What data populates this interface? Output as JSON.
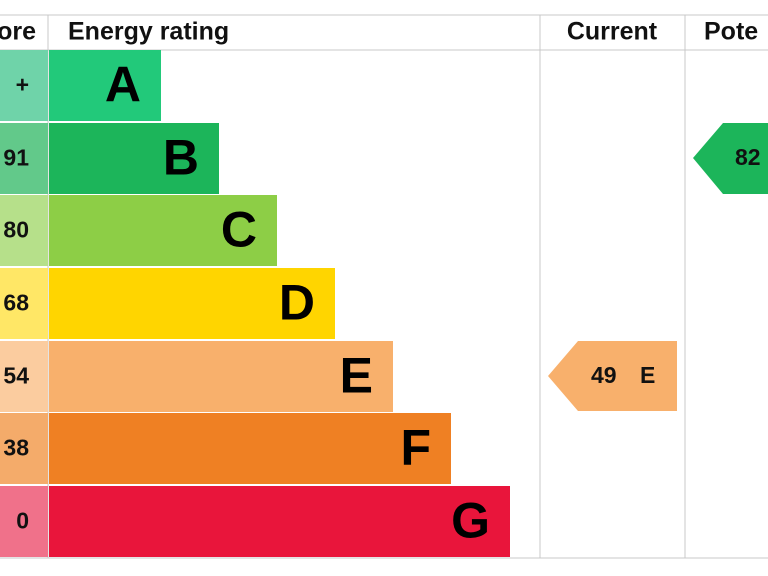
{
  "header": {
    "score": "ore",
    "rating": "Energy rating",
    "current": "Current",
    "potential": "Pote"
  },
  "rows": [
    {
      "score": "+",
      "letter": "A"
    },
    {
      "score": "91",
      "letter": "B"
    },
    {
      "score": "80",
      "letter": "C"
    },
    {
      "score": "68",
      "letter": "D"
    },
    {
      "score": "54",
      "letter": "E"
    },
    {
      "score": "38",
      "letter": "F"
    },
    {
      "score": "0",
      "letter": "G"
    }
  ],
  "current": {
    "score": "49",
    "letter": "E"
  },
  "potential": {
    "score": "82"
  }
}
